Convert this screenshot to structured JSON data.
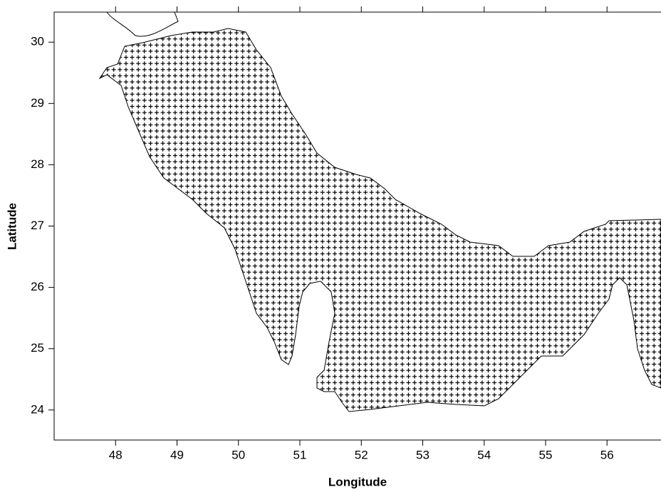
{
  "chart_data": {
    "type": "map",
    "x_label": "Longitude",
    "y_label": "Latitude",
    "xlim": [
      47,
      56.86
    ],
    "ylim": [
      23.51,
      30.49
    ],
    "xticks": [
      48,
      49,
      50,
      51,
      52,
      53,
      54,
      55,
      56
    ],
    "yticks": [
      24,
      25,
      26,
      27,
      28,
      29,
      30
    ]
  }
}
